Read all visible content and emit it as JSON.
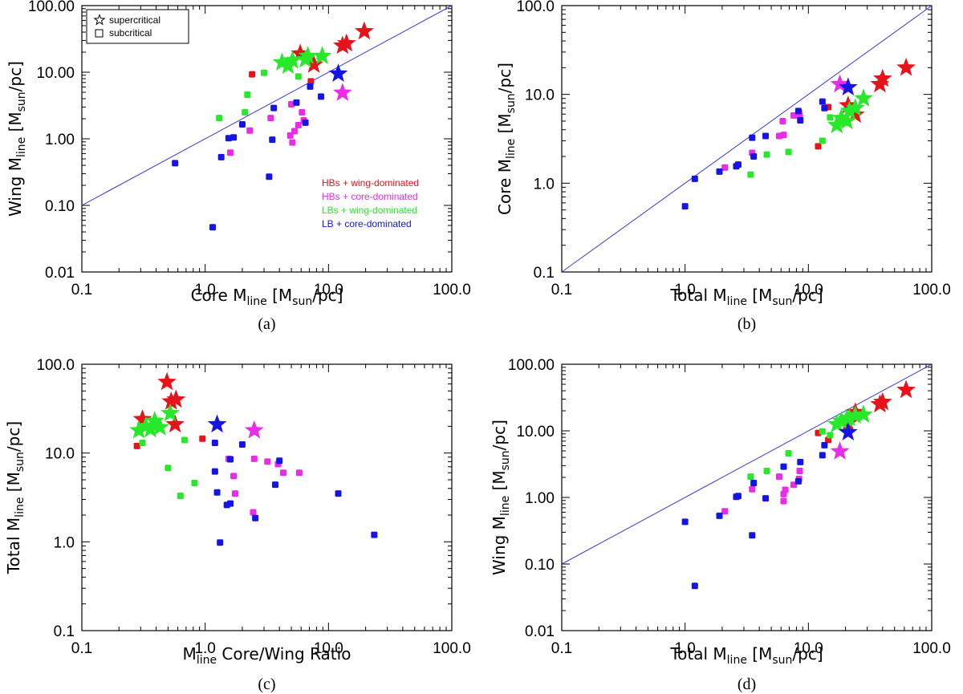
{
  "colors": {
    "HB_wing": "#e8131a",
    "HB_core": "#ea2ce8",
    "LB_wing": "#28e82a",
    "LB_core": "#1414e6",
    "line": "#3a3ad8"
  },
  "legend": {
    "markers": [
      "supercritical",
      "subcritical"
    ],
    "categories": [
      "HBs + wing-dominated",
      "HBs + core-dominated",
      "LBs + wing-dominated",
      "LB + core-dominated"
    ]
  },
  "chart_data": [
    {
      "type": "scatter",
      "id": "a",
      "caption": "(a)",
      "xlabel": {
        "pre": "Core M",
        "sub": "line",
        "post": " [M",
        "sub2": "sun",
        "post2": "/pc]"
      },
      "ylabel": {
        "pre": "Wing M",
        "sub": "line",
        "post": " [M",
        "sub2": "sun",
        "post2": "/pc]"
      },
      "xlim": [
        0.1,
        100
      ],
      "ylim": [
        0.01,
        100
      ],
      "xticks": [
        "0.1",
        "1.0",
        "10.0",
        "100.0"
      ],
      "yticks": [
        "0.01",
        "0.10",
        "1.00",
        "10.00",
        "100.00"
      ],
      "reference_line": "y = x",
      "series": {
        "HB_wing": {
          "squares": [
            [
              2.4,
              9.3
            ],
            [
              7.2,
              7.3
            ]
          ],
          "stars": [
            [
              5.9,
              19
            ],
            [
              7.6,
              13
            ],
            [
              13,
              25
            ],
            [
              14,
              27
            ],
            [
              19.5,
              41
            ]
          ]
        },
        "HB_core": {
          "squares": [
            [
              1.6,
              0.62
            ],
            [
              2.3,
              1.33
            ],
            [
              3.4,
              2.05
            ],
            [
              4.9,
              1.12
            ],
            [
              5.1,
              0.88
            ],
            [
              5.3,
              1.3
            ],
            [
              5.7,
              1.6
            ],
            [
              6.1,
              2.5
            ],
            [
              6.3,
              1.9
            ],
            [
              5.0,
              3.3
            ]
          ],
          "stars": [
            [
              13,
              4.9
            ]
          ]
        },
        "LB_wing": {
          "squares": [
            [
              1.3,
              2.05
            ],
            [
              2.1,
              2.5
            ],
            [
              2.2,
              4.6
            ],
            [
              3.0,
              9.8
            ],
            [
              5.7,
              8.6
            ],
            [
              8.5,
              17
            ]
          ],
          "stars": [
            [
              4.2,
              14
            ],
            [
              4.7,
              12.5
            ],
            [
              5.1,
              15
            ],
            [
              6.5,
              15.5
            ],
            [
              6.8,
              17.5
            ],
            [
              8.9,
              17.5
            ]
          ]
        },
        "LB_core": {
          "squares": [
            [
              0.57,
              0.43
            ],
            [
              1.15,
              0.047
            ],
            [
              1.35,
              0.53
            ],
            [
              1.55,
              1.02
            ],
            [
              1.7,
              1.05
            ],
            [
              2.0,
              1.65
            ],
            [
              3.3,
              0.27
            ],
            [
              3.5,
              0.97
            ],
            [
              3.6,
              2.9
            ],
            [
              5.5,
              3.5
            ],
            [
              6.5,
              1.75
            ],
            [
              7.1,
              6.1
            ],
            [
              8.7,
              4.3
            ]
          ],
          "stars": [
            [
              12,
              9.5
            ]
          ]
        }
      }
    },
    {
      "type": "scatter",
      "id": "b",
      "caption": "(b)",
      "xlabel": {
        "pre": "Total M",
        "sub": "line",
        "post": " [M",
        "sub2": "sun",
        "post2": "/pc]"
      },
      "ylabel": {
        "pre": "Core M",
        "sub": "line",
        "post": " [M",
        "sub2": "sun",
        "post2": "/pc]"
      },
      "xlim": [
        0.1,
        100
      ],
      "ylim": [
        0.1,
        100
      ],
      "xticks": [
        "0.1",
        "1.0",
        "10.0",
        "100.0"
      ],
      "yticks": [
        "0.1",
        "1.0",
        "10.0",
        "100.0"
      ],
      "reference_line": "y = x",
      "series": {
        "HB_wing": {
          "squares": [
            [
              12,
              2.6
            ],
            [
              14.5,
              7.2
            ]
          ],
          "stars": [
            [
              21,
              7.5
            ],
            [
              24,
              5.9
            ],
            [
              38,
              13
            ],
            [
              40,
              15
            ],
            [
              62,
              20
            ]
          ]
        },
        "HB_core": {
          "squares": [
            [
              2.1,
              1.5
            ],
            [
              3.5,
              2.2
            ],
            [
              5.8,
              3.4
            ],
            [
              6.2,
              5.0
            ],
            [
              7.6,
              5.8
            ],
            [
              8.4,
              6.2
            ],
            [
              6.3,
              3.5
            ],
            [
              8.5,
              5.7
            ]
          ],
          "stars": [
            [
              18,
              13
            ]
          ]
        },
        "LB_wing": {
          "squares": [
            [
              3.4,
              1.25
            ],
            [
              4.6,
              2.1
            ],
            [
              6.9,
              2.25
            ],
            [
              13,
              3.0
            ],
            [
              15,
              5.5
            ]
          ],
          "stars": [
            [
              17,
              4.5
            ],
            [
              18.5,
              5.4
            ],
            [
              20.5,
              5.0
            ],
            [
              21.5,
              6.5
            ],
            [
              24,
              7.0
            ],
            [
              28,
              9.0
            ]
          ]
        },
        "LB_core": {
          "squares": [
            [
              1.0,
              0.55
            ],
            [
              1.2,
              1.12
            ],
            [
              1.9,
              1.35
            ],
            [
              2.6,
              1.55
            ],
            [
              2.7,
              1.62
            ],
            [
              3.5,
              3.25
            ],
            [
              3.6,
              2.0
            ],
            [
              4.5,
              3.4
            ],
            [
              8.3,
              6.5
            ],
            [
              8.6,
              5.1
            ],
            [
              13,
              8.3
            ],
            [
              13.5,
              7.0
            ]
          ],
          "stars": [
            [
              21,
              12
            ]
          ]
        }
      }
    },
    {
      "type": "scatter",
      "id": "c",
      "caption": "(c)",
      "xlabel": {
        "pre": "M",
        "sub": "line",
        "post": " Core/Wing Ratio",
        "sub2": "",
        "post2": ""
      },
      "ylabel": {
        "pre": "Total M",
        "sub": "line",
        "post": " [M",
        "sub2": "sun",
        "post2": "/pc]"
      },
      "xlim": [
        0.1,
        100
      ],
      "ylim": [
        0.1,
        100
      ],
      "xticks": [
        "0.1",
        "1.0",
        "10.0",
        "100.0"
      ],
      "yticks": [
        "0.1",
        "1.0",
        "10.0",
        "100.0"
      ],
      "reference_line": "",
      "series": {
        "HB_wing": {
          "squares": [
            [
              0.28,
              12
            ],
            [
              0.95,
              14.5
            ]
          ],
          "stars": [
            [
              0.31,
              24
            ],
            [
              0.49,
              63
            ],
            [
              0.53,
              38
            ],
            [
              0.58,
              40
            ],
            [
              0.57,
              21
            ]
          ]
        },
        "HB_core": {
          "squares": [
            [
              1.55,
              8.6
            ],
            [
              1.7,
              5.5
            ],
            [
              1.75,
              3.5
            ],
            [
              2.45,
              2.15
            ],
            [
              2.5,
              8.6
            ],
            [
              3.2,
              8.0
            ],
            [
              3.9,
              7.5
            ],
            [
              4.3,
              6.0
            ],
            [
              5.8,
              6.0
            ]
          ],
          "stars": [
            [
              2.5,
              18
            ]
          ]
        },
        "LB_wing": {
          "squares": [
            [
              0.31,
              13
            ],
            [
              0.5,
              6.8
            ],
            [
              0.63,
              3.3
            ],
            [
              0.68,
              14
            ],
            [
              0.82,
              4.6
            ]
          ],
          "stars": [
            [
              0.29,
              18
            ],
            [
              0.33,
              20
            ],
            [
              0.36,
              18.5
            ],
            [
              0.39,
              23
            ],
            [
              0.43,
              19.5
            ],
            [
              0.52,
              28
            ]
          ]
        },
        "LB_core": {
          "squares": [
            [
              1.2,
              13
            ],
            [
              1.2,
              6.2
            ],
            [
              1.25,
              3.6
            ],
            [
              1.32,
              0.98
            ],
            [
              1.5,
              2.6
            ],
            [
              1.6,
              2.7
            ],
            [
              1.6,
              8.5
            ],
            [
              2.0,
              12.5
            ],
            [
              2.55,
              1.85
            ],
            [
              3.7,
              4.4
            ],
            [
              4.0,
              8.2
            ],
            [
              12,
              3.5
            ],
            [
              23.5,
              1.2
            ]
          ],
          "stars": [
            [
              1.25,
              21
            ]
          ]
        }
      }
    },
    {
      "type": "scatter",
      "id": "d",
      "caption": "(d)",
      "xlabel": {
        "pre": "Total M",
        "sub": "line",
        "post": " [M",
        "sub2": "sun",
        "post2": "/pc]"
      },
      "ylabel": {
        "pre": "Wing M",
        "sub": "line",
        "post": " [M",
        "sub2": "sun",
        "post2": "/pc]"
      },
      "xlim": [
        0.1,
        100
      ],
      "ylim": [
        0.01,
        100
      ],
      "xticks": [
        "0.1",
        "1.0",
        "10.0",
        "100.0"
      ],
      "yticks": [
        "0.01",
        "0.10",
        "1.00",
        "10.00",
        "100.00"
      ],
      "reference_line": "y = x",
      "series": {
        "HB_wing": {
          "squares": [
            [
              12,
              9.3
            ],
            [
              14.5,
              7.3
            ]
          ],
          "stars": [
            [
              21,
              13
            ],
            [
              24,
              19
            ],
            [
              38,
              25
            ],
            [
              40,
              27
            ],
            [
              62,
              41
            ]
          ]
        },
        "HB_core": {
          "squares": [
            [
              2.1,
              0.62
            ],
            [
              3.5,
              1.33
            ],
            [
              5.8,
              2.05
            ],
            [
              6.3,
              1.12
            ],
            [
              6.3,
              0.88
            ],
            [
              7.6,
              1.55
            ],
            [
              8.4,
              1.9
            ],
            [
              8.5,
              2.5
            ],
            [
              6.5,
              1.3
            ]
          ],
          "stars": [
            [
              18,
              4.9
            ]
          ]
        },
        "LB_wing": {
          "squares": [
            [
              3.4,
              2.05
            ],
            [
              4.6,
              2.5
            ],
            [
              6.9,
              4.6
            ],
            [
              13,
              9.8
            ],
            [
              15,
              8.6
            ]
          ],
          "stars": [
            [
              17,
              12.5
            ],
            [
              18.5,
              14
            ],
            [
              20.5,
              15
            ],
            [
              21.5,
              15.5
            ],
            [
              24,
              17
            ],
            [
              28,
              17.5
            ]
          ]
        },
        "LB_core": {
          "squares": [
            [
              1.0,
              0.43
            ],
            [
              1.2,
              0.047
            ],
            [
              1.9,
              0.53
            ],
            [
              2.6,
              1.02
            ],
            [
              2.7,
              1.05
            ],
            [
              3.5,
              0.27
            ],
            [
              3.6,
              1.65
            ],
            [
              4.5,
              0.97
            ],
            [
              6.3,
              2.9
            ],
            [
              8.3,
              1.75
            ],
            [
              8.6,
              3.4
            ],
            [
              13,
              4.3
            ],
            [
              13.5,
              6.1
            ]
          ],
          "stars": [
            [
              21,
              9.5
            ]
          ]
        }
      }
    }
  ]
}
